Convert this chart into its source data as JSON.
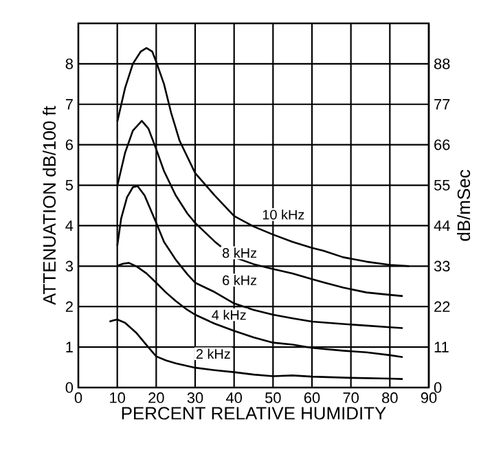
{
  "chart_data": {
    "type": "line",
    "xlabel": "PERCENT RELATIVE HUMIDITY",
    "ylabel": "ATTENUATION  dB/100 ft",
    "y2label": "dB/mSec",
    "xlim": [
      0,
      90
    ],
    "xticks": [
      0,
      10,
      20,
      30,
      40,
      50,
      60,
      70,
      80,
      90
    ],
    "ylim": [
      0,
      9
    ],
    "yticks": [
      0,
      1,
      2,
      3,
      4,
      5,
      6,
      7,
      8
    ],
    "y2lim": [
      0,
      99
    ],
    "y2ticks": [
      0,
      11,
      22,
      33,
      44,
      55,
      66,
      77,
      88
    ],
    "grid": true,
    "marker": "none",
    "line_style": "solid",
    "series": [
      {
        "name": "10 kHz",
        "color": "#000000",
        "x": [
          10,
          12,
          14,
          16,
          17.5,
          19,
          20,
          22,
          23.8,
          26,
          30,
          35,
          40,
          45,
          50,
          55,
          60,
          63,
          68,
          74,
          80,
          85
        ],
        "values": [
          6.57,
          7.4,
          8.0,
          8.3,
          8.39,
          8.3,
          8.05,
          7.5,
          6.8,
          6.1,
          5.3,
          4.75,
          4.24,
          3.98,
          3.78,
          3.6,
          3.45,
          3.38,
          3.22,
          3.11,
          3.03,
          3.0
        ]
      },
      {
        "name": "8 kHz",
        "color": "#000000",
        "x": [
          10,
          12,
          14,
          16.3,
          18,
          20,
          22,
          25,
          28,
          30,
          35,
          40,
          45,
          50,
          55,
          60,
          63,
          68,
          74,
          80,
          83.3
        ],
        "values": [
          4.98,
          5.8,
          6.35,
          6.59,
          6.4,
          5.89,
          5.35,
          4.75,
          4.3,
          4.07,
          3.61,
          3.22,
          3.05,
          2.93,
          2.82,
          2.68,
          2.6,
          2.47,
          2.35,
          2.29,
          2.26
        ]
      },
      {
        "name": "6 kHz",
        "color": "#000000",
        "x": [
          10,
          11,
          12.5,
          14,
          15.2,
          17,
          20,
          22,
          25,
          28,
          30,
          35,
          40,
          45,
          50,
          55,
          60,
          68,
          74,
          80,
          83.3
        ],
        "values": [
          3.5,
          4.18,
          4.7,
          4.95,
          4.98,
          4.75,
          4.07,
          3.6,
          3.16,
          2.8,
          2.59,
          2.36,
          2.08,
          1.92,
          1.8,
          1.71,
          1.63,
          1.57,
          1.53,
          1.49,
          1.47
        ]
      },
      {
        "name": "4 kHz",
        "color": "#000000",
        "x": [
          10,
          11.5,
          13,
          15,
          17.5,
          20,
          22.5,
          25,
          28,
          30,
          35,
          40,
          45,
          50,
          55,
          60,
          68,
          74,
          80,
          83.3
        ],
        "values": [
          3.01,
          3.06,
          3.08,
          2.99,
          2.82,
          2.59,
          2.35,
          2.14,
          1.92,
          1.8,
          1.58,
          1.4,
          1.24,
          1.11,
          1.06,
          0.98,
          0.91,
          0.87,
          0.8,
          0.75
        ]
      },
      {
        "name": "2 kHz",
        "color": "#000000",
        "x": [
          8,
          9,
          10,
          12,
          15,
          17.5,
          20,
          22.5,
          25,
          30,
          35,
          40,
          45,
          50,
          55,
          60,
          70,
          80,
          83.3
        ],
        "values": [
          1.63,
          1.66,
          1.68,
          1.6,
          1.34,
          1.05,
          0.77,
          0.67,
          0.6,
          0.49,
          0.43,
          0.38,
          0.32,
          0.28,
          0.3,
          0.27,
          0.24,
          0.22,
          0.21
        ]
      }
    ]
  }
}
